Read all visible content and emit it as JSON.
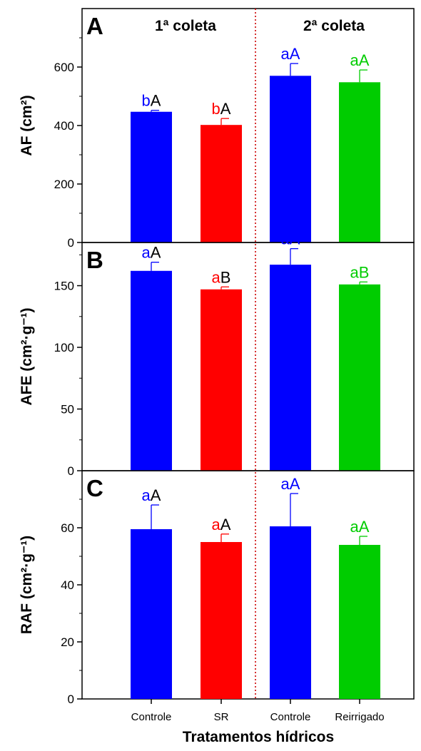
{
  "xlabel": "Tratamentos hídricos",
  "categories": [
    "Controle",
    "SR",
    "Controle",
    "Reirrigado"
  ],
  "group_labels": [
    "1ª coleta",
    "2ª coleta"
  ],
  "colors": [
    "#0000ff",
    "#ff0000",
    "#0000ff",
    "#00cc00"
  ],
  "chart_data": [
    {
      "type": "bar",
      "panel": "A",
      "ylabel": "AF (cm²)",
      "ylim": [
        0,
        800
      ],
      "yticks": [
        0,
        200,
        400,
        600
      ],
      "values": [
        447,
        402,
        570,
        548
      ],
      "errors": [
        5,
        22,
        42,
        42
      ],
      "letters_lower": [
        "b",
        "b",
        "a",
        "a"
      ],
      "letters_upper": [
        "A",
        "A",
        "A",
        "A"
      ]
    },
    {
      "type": "bar",
      "panel": "B",
      "ylabel": "AFE (cm²·g⁻¹)",
      "ylim": [
        0,
        185
      ],
      "yticks": [
        0,
        50,
        100,
        150
      ],
      "values": [
        162,
        147,
        167,
        151
      ],
      "errors": [
        7,
        2,
        13,
        2
      ],
      "letters_lower": [
        "a",
        "a",
        "a",
        "a"
      ],
      "letters_upper": [
        "A",
        "B",
        "A",
        "B"
      ]
    },
    {
      "type": "bar",
      "panel": "C",
      "ylabel": "RAF (cm²·g⁻¹)",
      "ylim": [
        0,
        80
      ],
      "yticks": [
        0,
        20,
        40,
        60
      ],
      "values": [
        59.5,
        55,
        60.5,
        54
      ],
      "errors": [
        8.5,
        2.8,
        11.5,
        3
      ],
      "letters_lower": [
        "a",
        "a",
        "a",
        "a"
      ],
      "letters_upper": [
        "A",
        "A",
        "A",
        "A"
      ]
    }
  ]
}
